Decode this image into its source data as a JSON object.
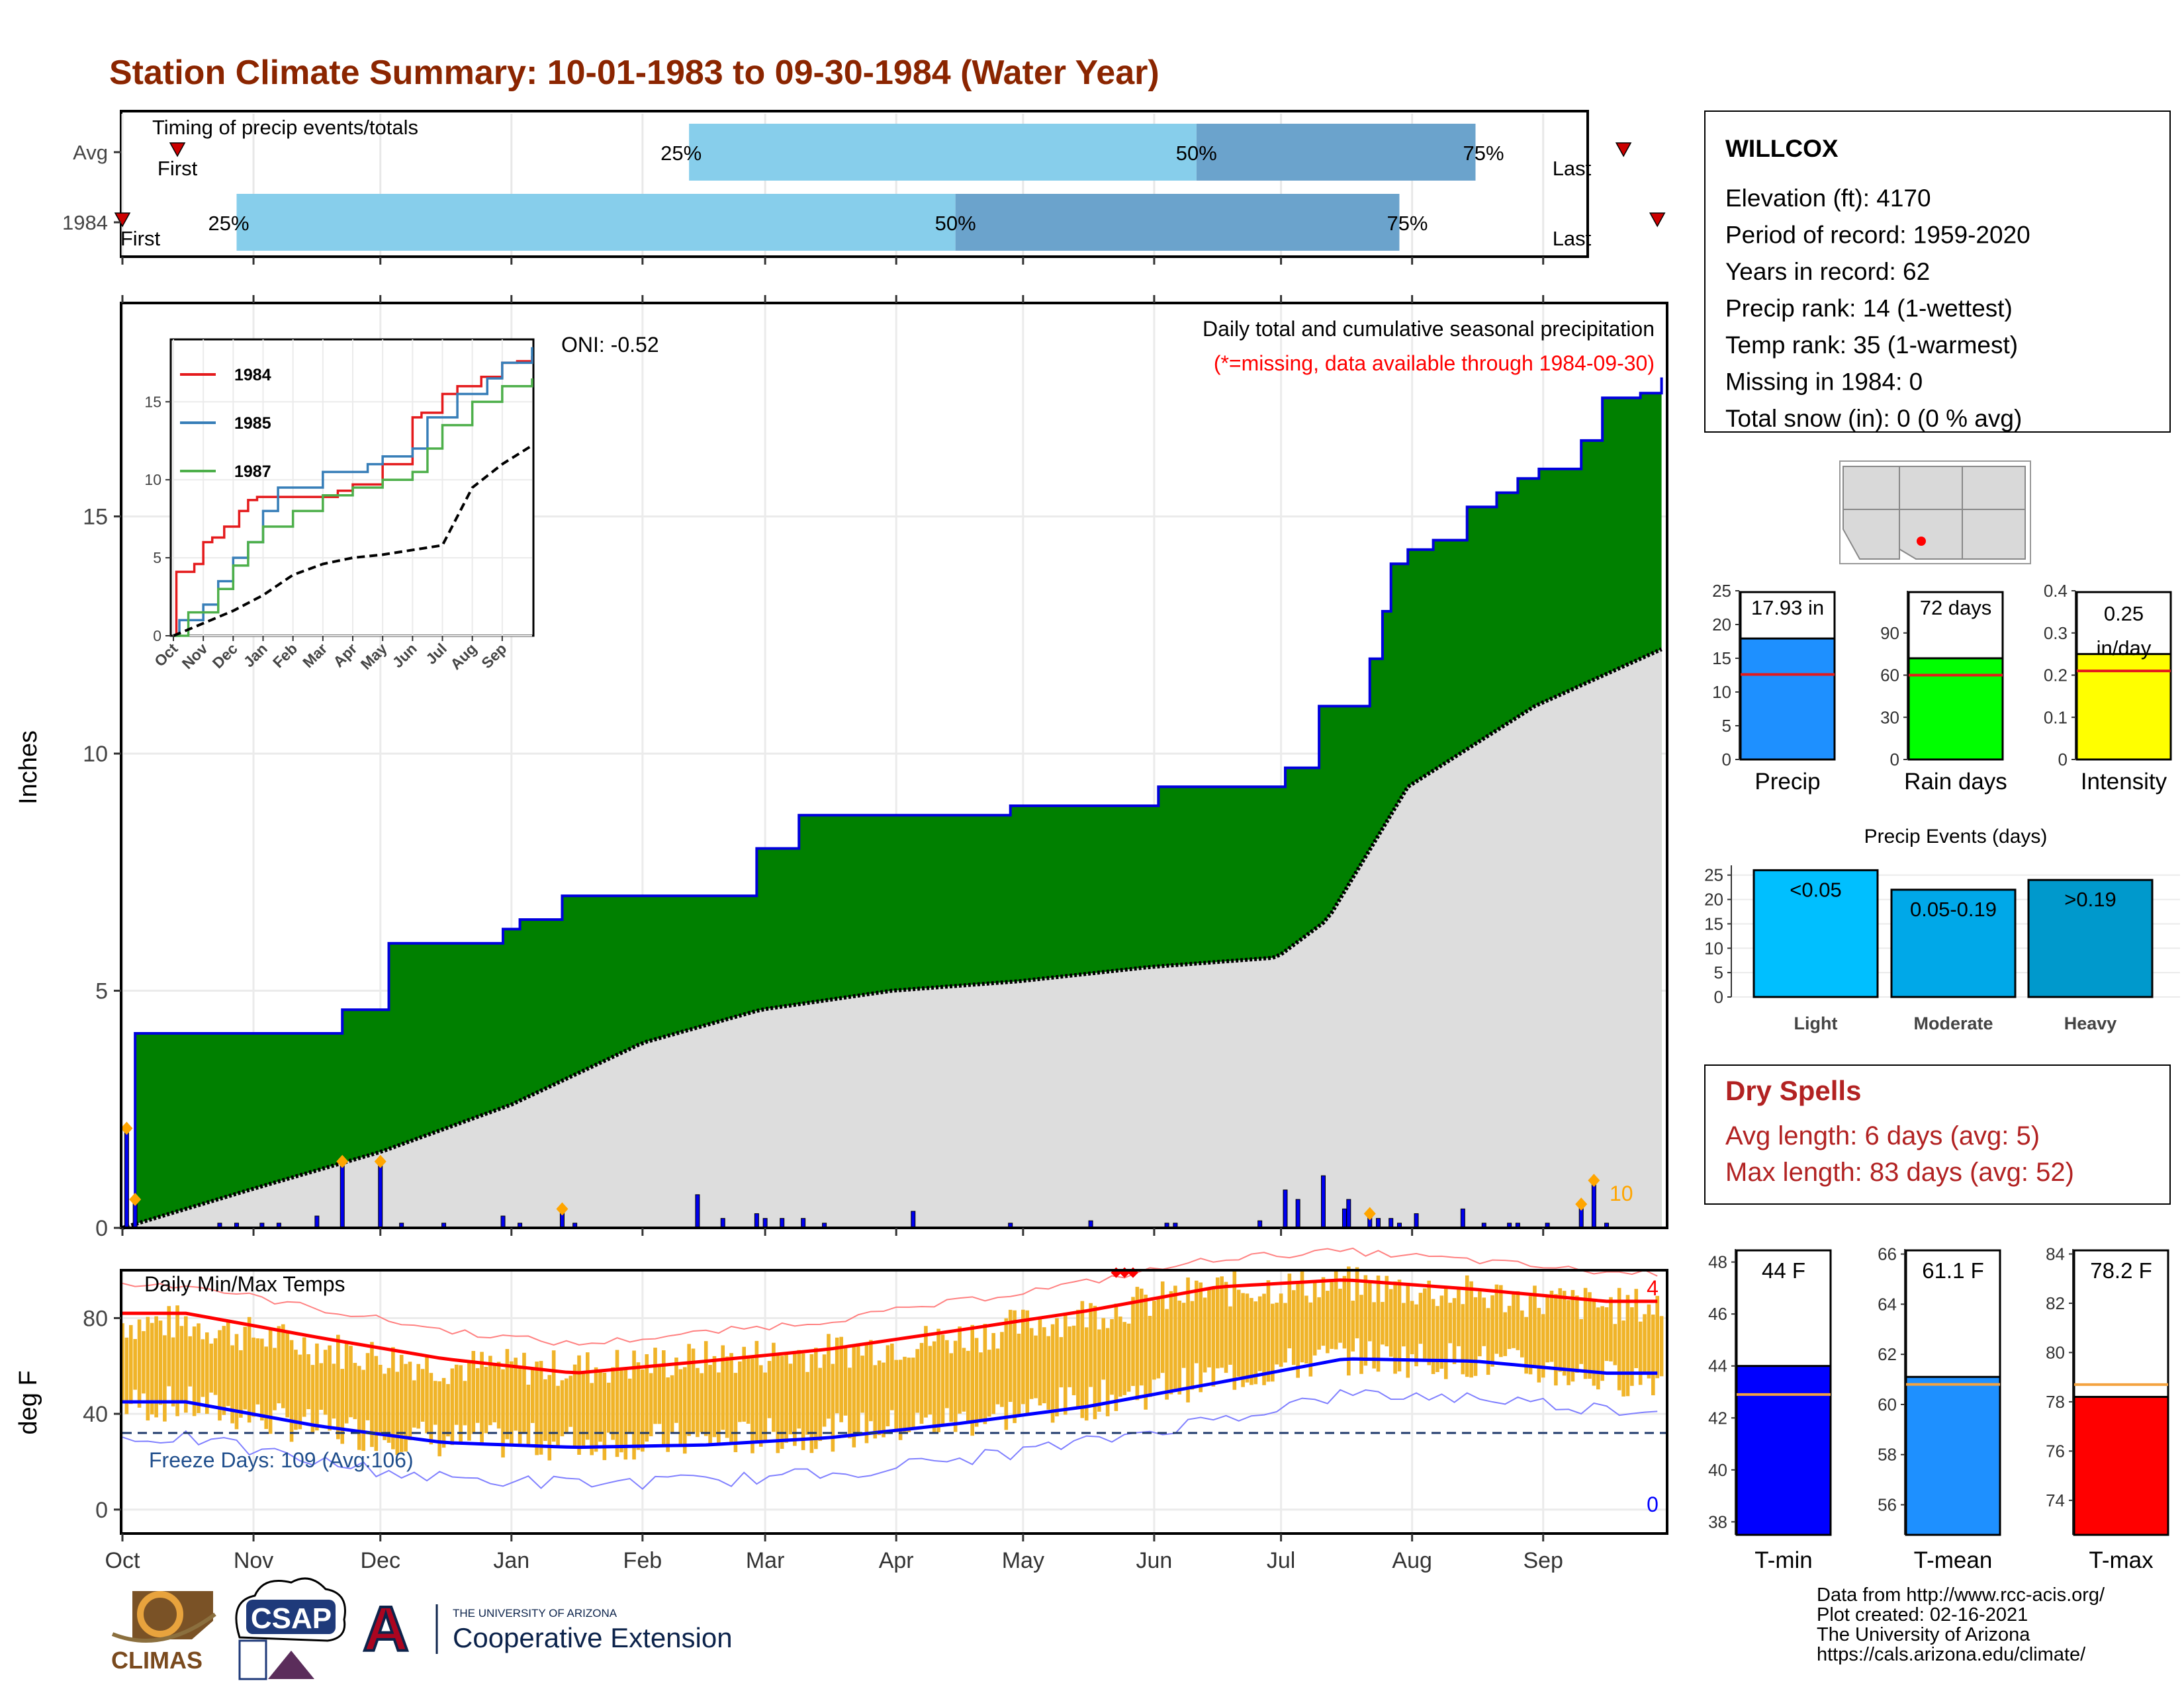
{
  "title": "Station Climate Summary: 10-01-1983 to 09-30-1984 (Water Year)",
  "colors": {
    "title": "#8B2500",
    "precip_fill": "#008000",
    "precip_line": "#0000DD",
    "normal_fill": "#DDDDDD",
    "bar_blue": "#1E90FF",
    "orange": "#FFA500",
    "temp_bar": "#F0B429",
    "red": "#FF0000",
    "blue": "#0000FF",
    "light_blue": "#87CEEB",
    "mid_blue": "#6BA3CC",
    "green_bar": "#00FF00",
    "yellow_bar": "#FFFF00",
    "event_light": "#00BFFF",
    "event_mod": "#00A8E8",
    "event_heavy": "#0099CC",
    "dry_red": "#B22222"
  },
  "timing": {
    "title": "Timing of precip events/totals",
    "rows": [
      {
        "label": "Avg",
        "first_label": "First",
        "last_label": "Last",
        "first_day": 13,
        "last_day": 355,
        "q25": 134,
        "q50": 254,
        "q75": 320,
        "q25_label": "25%",
        "q50_label": "50%",
        "q75_label": "75%"
      },
      {
        "label": "1984",
        "first_label": "First",
        "last_label": "Last",
        "first_day": 0,
        "last_day": 363,
        "q25": 27,
        "q50": 197,
        "q75": 302,
        "q25_label": "25%",
        "q50_label": "50%",
        "q75_label": "75%"
      }
    ]
  },
  "precip_chart": {
    "ylabel": "Inches",
    "yticks": [
      0,
      5,
      10,
      15
    ],
    "ymax": 19.5,
    "annotation_title": "Daily total and cumulative seasonal precipitation",
    "annotation_missing": "(*=missing, data available through 1984-09-30)",
    "oni": "ONI: -0.52",
    "extreme_count": "10"
  },
  "inset": {
    "series": [
      {
        "name": "1984",
        "color": "#E41A1C"
      },
      {
        "name": "1985",
        "color": "#377EB8"
      },
      {
        "name": "1987",
        "color": "#4DAF4A"
      }
    ],
    "yticks": [
      0,
      5,
      10,
      15
    ],
    "months": [
      "Oct",
      "Nov",
      "Dec",
      "Jan",
      "Feb",
      "Mar",
      "Apr",
      "May",
      "Jun",
      "Jul",
      "Aug",
      "Sep"
    ]
  },
  "temp_chart": {
    "ylabel": "deg F",
    "title": "Daily Min/Max Temps",
    "yticks": [
      0,
      40,
      80
    ],
    "freeze_text": "Freeze Days: 109 (Avg:106)",
    "freeze_line": 32,
    "record_high_count": "4",
    "record_low_count": "0"
  },
  "months": [
    "Oct",
    "Nov",
    "Dec",
    "Jan",
    "Feb",
    "Mar",
    "Apr",
    "May",
    "Jun",
    "Jul",
    "Aug",
    "Sep"
  ],
  "station": {
    "name": "WILLCOX",
    "lines": [
      "Elevation (ft): 4170",
      "Period of record: 1959-2020",
      "Years in record: 62",
      "Precip rank: 14 (1-wettest)",
      "Temp rank: 35 (1-warmest)",
      "Missing in 1984: 0",
      "Total snow (in): 0 (0 % avg)"
    ]
  },
  "summary_bars": [
    {
      "label": "Precip",
      "value": 17.93,
      "avg": 12.6,
      "text": "17.93 in",
      "ymax": 25,
      "yticks": [
        0,
        5,
        10,
        15,
        20,
        25
      ],
      "color": "#1E90FF"
    },
    {
      "label": "Rain days",
      "value": 72,
      "avg": 60,
      "text": "72 days",
      "ymax": 120,
      "yticks": [
        0,
        30,
        60,
        90
      ],
      "color": "#00FF00"
    },
    {
      "label": "Intensity",
      "value": 0.25,
      "avg": 0.21,
      "text": "0.25 in/day",
      "ymax": 0.4,
      "yticks": [
        0.0,
        0.1,
        0.2,
        0.3,
        0.4
      ],
      "color": "#FFFF00"
    }
  ],
  "precip_events": {
    "title": "Precip Events (days)",
    "yticks": [
      0,
      5,
      10,
      15,
      20,
      25
    ],
    "bars": [
      {
        "category": "Light",
        "label": "<0.05",
        "value": 26
      },
      {
        "category": "Moderate",
        "label": "0.05-0.19",
        "value": 22
      },
      {
        "category": "Heavy",
        "label": ">0.19",
        "value": 24
      }
    ]
  },
  "dry_spells": {
    "title": "Dry Spells",
    "avg_line": "Avg length: 6 days (avg: 5)",
    "max_line": "Max length: 83 days (avg: 52)"
  },
  "temp_bars": [
    {
      "label": "T-min",
      "value": 44,
      "avg": 42.9,
      "text": "44 F",
      "ymin": 37.5,
      "ymax": 48.5,
      "yticks": [
        38,
        40,
        42,
        44,
        46,
        48
      ],
      "color": "#0000FF"
    },
    {
      "label": "T-mean",
      "value": 61.1,
      "avg": 60.8,
      "text": "61.1 F",
      "ymin": 54.8,
      "ymax": 66.2,
      "yticks": [
        56,
        58,
        60,
        62,
        64,
        66
      ],
      "color": "#1E90FF"
    },
    {
      "label": "T-max",
      "value": 78.2,
      "avg": 78.7,
      "text": "78.2 F",
      "ymin": 72.6,
      "ymax": 84.2,
      "yticks": [
        74,
        76,
        78,
        80,
        82,
        84
      ],
      "color": "#FF0000"
    }
  ],
  "footer": {
    "lines": [
      "Data from http://www.rcc-acis.org/",
      "Plot created: 02-16-2021",
      "The University of Arizona",
      "https://cals.arizona.edu/climate/"
    ]
  },
  "logos": {
    "climas": "CLIMAS",
    "csap": "CSAP",
    "ua_small": "THE UNIVERSITY OF ARIZONA",
    "ua_big": "Cooperative Extension",
    "ua_letter": "A"
  },
  "chart_data": [
    {
      "type": "area",
      "title": "Daily total and cumulative seasonal precipitation",
      "ylabel": "Inches",
      "ylim": [
        0,
        19.5
      ],
      "x_unit": "day of water year (0 = Oct 1, 1983)",
      "series": [
        {
          "name": "1984 cumulative",
          "x": [
            0,
            3,
            45,
            52,
            63,
            67,
            90,
            94,
            104,
            108,
            135,
            142,
            150,
            152,
            160,
            163,
            188,
            210,
            216,
            245,
            275,
            283,
            295,
            298,
            300,
            304,
            310,
            318,
            325,
            330,
            335,
            345,
            350,
            359,
            364
          ],
          "values": [
            0,
            4.1,
            4.1,
            4.6,
            6.0,
            6.0,
            6.3,
            6.5,
            7.0,
            7.0,
            7.0,
            7.0,
            8.0,
            8.0,
            8.7,
            8.7,
            8.7,
            8.9,
            8.9,
            9.3,
            9.7,
            11.0,
            12.0,
            13.0,
            14.0,
            14.3,
            14.5,
            15.2,
            15.5,
            15.8,
            16.0,
            16.6,
            17.5,
            17.6,
            17.93
          ]
        },
        {
          "name": "normal cumulative",
          "x": [
            0,
            30,
            61,
            92,
            123,
            151,
            182,
            212,
            243,
            273,
            285,
            304,
            334,
            364
          ],
          "values": [
            0,
            0.8,
            1.6,
            2.6,
            3.9,
            4.6,
            5.0,
            5.2,
            5.5,
            5.7,
            6.5,
            9.3,
            11.0,
            12.2
          ]
        },
        {
          "name": "daily precip",
          "x": [
            1,
            3,
            23,
            27,
            33,
            37,
            46,
            52,
            61,
            66,
            76,
            90,
            94,
            104,
            107,
            136,
            142,
            150,
            152,
            156,
            161,
            166,
            187,
            210,
            229,
            247,
            249,
            269,
            275,
            278,
            284,
            289,
            290,
            295,
            297,
            300,
            302,
            306,
            317,
            322,
            328,
            330,
            337,
            345,
            348,
            351
          ],
          "values": [
            2.1,
            0.6,
            0.1,
            0.1,
            0.1,
            0.1,
            0.25,
            1.4,
            1.4,
            0.1,
            0.1,
            0.25,
            0.1,
            0.4,
            0.1,
            0.7,
            0.2,
            0.3,
            0.2,
            0.2,
            0.2,
            0.1,
            0.35,
            0.1,
            0.15,
            0.1,
            0.1,
            0.15,
            0.8,
            0.6,
            1.1,
            0.4,
            0.6,
            0.3,
            0.2,
            0.2,
            0.1,
            0.3,
            0.4,
            0.1,
            0.1,
            0.1,
            0.1,
            0.5,
            1.0,
            0.1
          ]
        }
      ]
    },
    {
      "type": "line",
      "title": "",
      "xlabel": "",
      "ylabel": "",
      "ylim": [
        0,
        19
      ],
      "categories": [
        "Oct",
        "Nov",
        "Dec",
        "Jan",
        "Feb",
        "Mar",
        "Apr",
        "May",
        "Jun",
        "Jul",
        "Aug",
        "Sep"
      ],
      "series": [
        {
          "name": "1984",
          "x": [
            0,
            0.1,
            0.7,
            1.0,
            1.3,
            1.7,
            2.2,
            2.5,
            2.8,
            5.5,
            6.0,
            7.0,
            8.0,
            8.3,
            9.0,
            9.5,
            10.3,
            11.0,
            11.5,
            12.0
          ],
          "values": [
            0,
            4.1,
            4.6,
            6.0,
            6.3,
            7.0,
            8.0,
            8.7,
            8.9,
            9.3,
            9.7,
            11.0,
            14.0,
            14.3,
            15.5,
            16.0,
            16.6,
            17.5,
            17.6,
            17.93
          ]
        },
        {
          "name": "1985",
          "x": [
            0,
            0.2,
            1.0,
            1.5,
            2.0,
            2.5,
            3.0,
            3.5,
            5.0,
            6.5,
            7.0,
            8.0,
            8.5,
            9.5,
            10.5,
            11.0,
            12.0
          ],
          "values": [
            0,
            1.0,
            2.0,
            3.5,
            5.0,
            6.0,
            8.0,
            9.5,
            10.5,
            11.0,
            11.5,
            12.0,
            14.0,
            15.5,
            16.5,
            17.5,
            18.5
          ]
        },
        {
          "name": "1987",
          "x": [
            0,
            0.5,
            1.5,
            2.0,
            2.5,
            3.0,
            4.0,
            5.0,
            6.0,
            7.0,
            8.0,
            8.5,
            9.0,
            10.0,
            11.0,
            12.0
          ],
          "values": [
            0,
            1.5,
            3.0,
            4.5,
            6.0,
            7.0,
            8.0,
            9.0,
            9.5,
            10.0,
            10.5,
            12.0,
            13.5,
            15.0,
            16.0,
            16.5
          ]
        },
        {
          "name": "normal",
          "x": [
            0,
            1,
            2,
            3,
            4,
            5,
            6,
            7,
            8,
            9,
            10,
            11,
            12
          ],
          "values": [
            0,
            0.8,
            1.6,
            2.6,
            3.9,
            4.6,
            5.0,
            5.2,
            5.5,
            5.8,
            9.5,
            11.0,
            12.2
          ]
        }
      ]
    },
    {
      "type": "bar",
      "title": "Daily Min/Max Temps",
      "ylabel": "deg F",
      "ylim": [
        -10,
        100
      ],
      "x_unit": "month",
      "categories": [
        "Oct",
        "Nov",
        "Dec",
        "Jan",
        "Feb",
        "Mar",
        "Apr",
        "May",
        "Jun",
        "Jul",
        "Aug",
        "Sep"
      ],
      "series": [
        {
          "name": "avg high",
          "values": [
            82,
            72,
            63,
            57,
            62,
            67,
            75,
            83,
            93,
            96,
            92,
            87
          ]
        },
        {
          "name": "avg low",
          "values": [
            45,
            35,
            28,
            26,
            27,
            30,
            36,
            43,
            53,
            63,
            62,
            57
          ]
        },
        {
          "name": "daily high (monthly mean)",
          "values": [
            78,
            68,
            60,
            59,
            63,
            66,
            72,
            82,
            92,
            94,
            90,
            85
          ]
        },
        {
          "name": "daily low (monthly mean)",
          "values": [
            44,
            34,
            29,
            28,
            29,
            32,
            37,
            45,
            55,
            64,
            62,
            55
          ]
        }
      ]
    },
    {
      "type": "bar",
      "categories": [
        "Precip",
        "Rain days",
        "Intensity"
      ],
      "values": [
        17.93,
        72,
        0.25
      ]
    },
    {
      "type": "bar",
      "title": "Precip Events (days)",
      "categories": [
        "Light",
        "Moderate",
        "Heavy"
      ],
      "values": [
        26,
        22,
        24
      ]
    },
    {
      "type": "bar",
      "categories": [
        "T-min",
        "T-mean",
        "T-max"
      ],
      "values": [
        44,
        61.1,
        78.2
      ]
    }
  ]
}
